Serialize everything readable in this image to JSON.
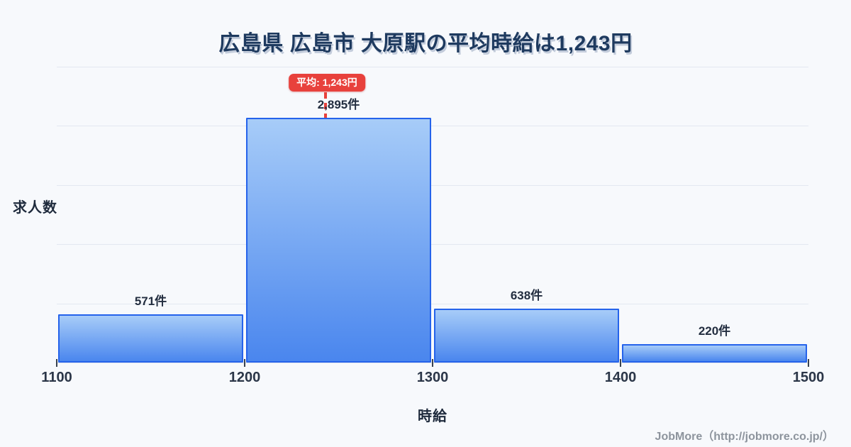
{
  "page": {
    "background": "#f7f9fc"
  },
  "title": {
    "text": "広島県 広島市 大原駅の平均時給は1,243円"
  },
  "average_badge": {
    "text": "平均: 1,243円"
  },
  "y_axis": {
    "label": "求人数"
  },
  "x_axis": {
    "label": "時給"
  },
  "footer": {
    "text": "JobMore（http://jobmore.co.jp/）"
  },
  "chart_data": {
    "type": "bar",
    "title": "広島県 広島市 大原駅の平均時給は1,243円",
    "categories": [
      "1100-1200",
      "1200-1300",
      "1300-1400",
      "1400-1500"
    ],
    "values": [
      571,
      2895,
      638,
      220
    ],
    "value_labels": [
      "571件",
      "2,895件",
      "638件",
      "220件"
    ],
    "xlabel": "時給",
    "ylabel": "求人数",
    "x_ticks": [
      1100,
      1200,
      1300,
      1400,
      1500
    ],
    "x_tick_labels": [
      "1100",
      "1200",
      "1300",
      "1400",
      "1500"
    ],
    "ylim": [
      0,
      3500
    ],
    "grid_step": 700,
    "grid": true,
    "legend": false,
    "average_line": {
      "x": 1243,
      "label": "平均: 1,243円"
    },
    "colors": {
      "bar_border": "#2563eb",
      "bar_fill_top": "#a7ccf8",
      "bar_fill_bottom": "#4a86ee",
      "average": "#e8413c",
      "gridline": "#e3e8f1",
      "title_text": "#1e3a5f",
      "label_text": "#232e40",
      "footer_text": "#8d949d"
    }
  }
}
